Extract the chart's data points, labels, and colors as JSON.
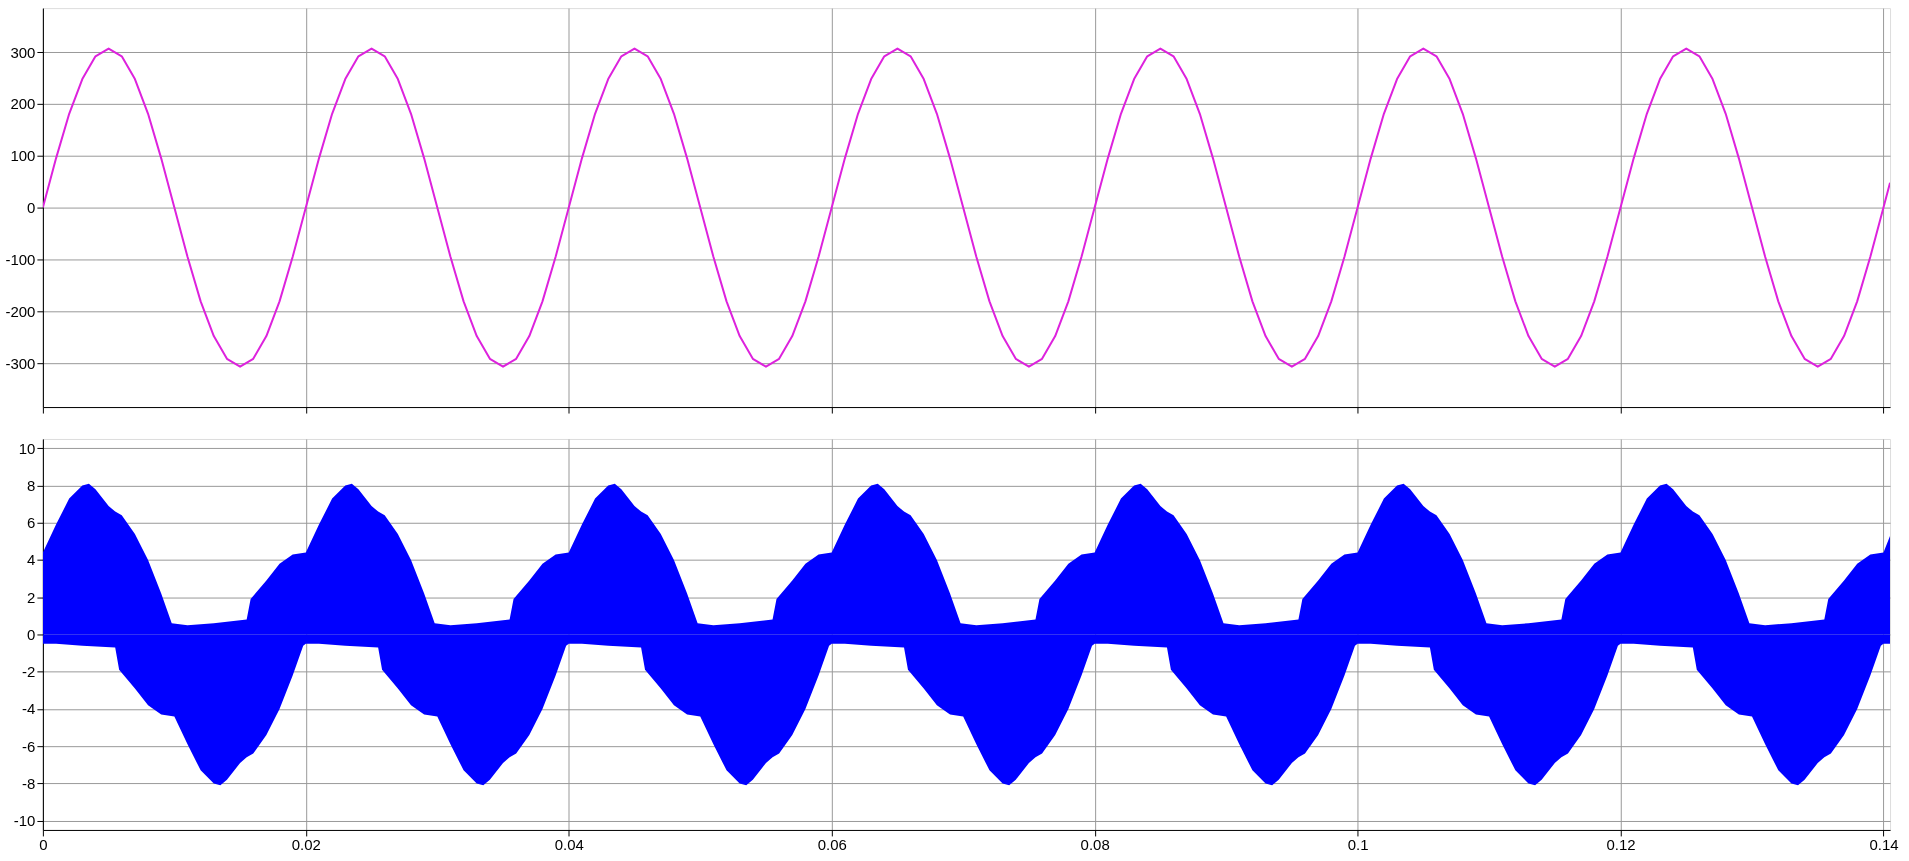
{
  "chart_data": [
    {
      "type": "line",
      "xlim": [
        0,
        0.1405
      ],
      "ylim": [
        -385,
        385
      ],
      "xticks": [
        0,
        0.02,
        0.04,
        0.06,
        0.08,
        0.1,
        0.12,
        0.14
      ],
      "yticks": [
        -300,
        -200,
        -100,
        0,
        100,
        200,
        300
      ],
      "grid": true,
      "tick_labels": "y",
      "series": [
        {
          "color": "#dd22dd",
          "x": [
            0,
            0.001,
            0.002,
            0.003,
            0.004,
            0.005,
            0.006,
            0.007,
            0.008,
            0.009,
            0.01,
            0.011,
            0.012,
            0.013,
            0.014,
            0.015,
            0.016,
            0.017,
            0.018,
            0.019,
            0.02,
            0.021,
            0.022,
            0.023,
            0.024,
            0.025,
            0.026,
            0.027,
            0.028,
            0.029,
            0.03,
            0.031,
            0.032,
            0.033,
            0.034,
            0.035,
            0.036,
            0.037,
            0.038,
            0.039,
            0.04,
            0.041,
            0.042,
            0.043,
            0.044,
            0.045,
            0.046,
            0.047,
            0.048,
            0.049,
            0.05,
            0.051,
            0.052,
            0.053,
            0.054,
            0.055,
            0.056,
            0.057,
            0.058,
            0.059,
            0.06,
            0.061,
            0.062,
            0.063,
            0.064,
            0.065,
            0.066,
            0.067,
            0.068,
            0.069,
            0.07,
            0.071,
            0.072,
            0.073,
            0.074,
            0.075,
            0.076,
            0.077,
            0.078,
            0.079,
            0.08,
            0.081,
            0.082,
            0.083,
            0.084,
            0.085,
            0.086,
            0.087,
            0.088,
            0.089,
            0.09,
            0.091,
            0.092,
            0.093,
            0.094,
            0.095,
            0.096,
            0.097,
            0.098,
            0.099,
            0.1,
            0.101,
            0.102,
            0.103,
            0.104,
            0.105,
            0.106,
            0.107,
            0.108,
            0.109,
            0.11,
            0.111,
            0.112,
            0.113,
            0.114,
            0.115,
            0.116,
            0.117,
            0.118,
            0.119,
            0.12,
            0.121,
            0.122,
            0.123,
            0.124,
            0.125,
            0.126,
            0.127,
            0.128,
            0.129,
            0.13,
            0.131,
            0.132,
            0.133,
            0.134,
            0.135,
            0.136,
            0.137,
            0.138,
            0.139,
            0.14,
            0.1405
          ],
          "values": [
            0,
            95,
            181,
            248,
            292,
            307,
            292,
            248,
            181,
            95,
            0,
            -95,
            -181,
            -248,
            -292,
            -307,
            -292,
            -248,
            -181,
            -95,
            0,
            95,
            181,
            248,
            292,
            307,
            292,
            248,
            181,
            95,
            0,
            -95,
            -181,
            -248,
            -292,
            -307,
            -292,
            -248,
            -181,
            -95,
            0,
            95,
            181,
            248,
            292,
            307,
            292,
            248,
            181,
            95,
            0,
            -95,
            -181,
            -248,
            -292,
            -307,
            -292,
            -248,
            -181,
            -95,
            0,
            95,
            181,
            248,
            292,
            307,
            292,
            248,
            181,
            95,
            0,
            -95,
            -181,
            -248,
            -292,
            -307,
            -292,
            -248,
            -181,
            -95,
            0,
            95,
            181,
            248,
            292,
            307,
            292,
            248,
            181,
            95,
            0,
            -95,
            -181,
            -248,
            -292,
            -307,
            -292,
            -248,
            -181,
            -95,
            0,
            95,
            181,
            248,
            292,
            307,
            292,
            248,
            181,
            95,
            0,
            -95,
            -181,
            -248,
            -292,
            -307,
            -292,
            -248,
            -181,
            -95,
            0,
            95,
            181,
            248,
            292,
            307,
            292,
            248,
            181,
            95,
            0,
            -95,
            -181,
            -248,
            -292,
            -307,
            -292,
            -248,
            -181,
            -95,
            0,
            48
          ]
        }
      ]
    },
    {
      "type": "area",
      "xlim": [
        0,
        0.1405
      ],
      "ylim": [
        -10.5,
        10.5
      ],
      "xticks": [
        0,
        0.02,
        0.04,
        0.06,
        0.08,
        0.1,
        0.12,
        0.14
      ],
      "yticks": [
        -10,
        -8,
        -6,
        -4,
        -2,
        0,
        2,
        4,
        6,
        8,
        10
      ],
      "grid": true,
      "series": [
        {
          "color": "#0000ff",
          "x": [
            0,
            0.001,
            0.002,
            0.003,
            0.0035,
            0.004,
            0.005,
            0.0055,
            0.006,
            0.007,
            0.008,
            0.009,
            0.0098,
            0.011,
            0.013,
            0.0155,
            0.0158,
            0.017,
            0.018,
            0.019,
            0.02,
            0.021,
            0.022,
            0.023,
            0.0235,
            0.024,
            0.025,
            0.0255,
            0.026,
            0.027,
            0.028,
            0.029,
            0.0298,
            0.031,
            0.033,
            0.0355,
            0.0358,
            0.037,
            0.038,
            0.039,
            0.04,
            0.041,
            0.042,
            0.043,
            0.0435,
            0.044,
            0.045,
            0.0455,
            0.046,
            0.047,
            0.048,
            0.049,
            0.0498,
            0.051,
            0.053,
            0.0555,
            0.0558,
            0.057,
            0.058,
            0.059,
            0.06,
            0.061,
            0.062,
            0.063,
            0.0635,
            0.064,
            0.065,
            0.0655,
            0.066,
            0.067,
            0.068,
            0.069,
            0.0698,
            0.071,
            0.073,
            0.0755,
            0.0758,
            0.077,
            0.078,
            0.079,
            0.08,
            0.081,
            0.082,
            0.083,
            0.0835,
            0.084,
            0.085,
            0.0855,
            0.086,
            0.087,
            0.088,
            0.089,
            0.0898,
            0.091,
            0.093,
            0.0955,
            0.0958,
            0.097,
            0.098,
            0.099,
            0.1,
            0.101,
            0.102,
            0.103,
            0.1035,
            0.104,
            0.105,
            0.1055,
            0.106,
            0.107,
            0.108,
            0.109,
            0.1098,
            0.111,
            0.113,
            0.1155,
            0.1158,
            0.117,
            0.118,
            0.119,
            0.12,
            0.121,
            0.122,
            0.123,
            0.1235,
            0.124,
            0.125,
            0.1255,
            0.126,
            0.127,
            0.128,
            0.129,
            0.1298,
            0.131,
            0.133,
            0.1355,
            0.1358,
            0.137,
            0.138,
            0.139,
            0.14,
            0.1405
          ],
          "values": [
            4.4,
            5.9,
            7.3,
            8,
            8.1,
            7.8,
            6.9,
            6.6,
            6.4,
            5.4,
            4,
            2.2,
            0.6,
            0.5,
            0.6,
            0.8,
            1.9,
            2.9,
            3.8,
            4.3,
            4.4,
            5.9,
            7.3,
            8,
            8.1,
            7.8,
            6.9,
            6.6,
            6.4,
            5.4,
            4,
            2.2,
            0.6,
            0.5,
            0.6,
            0.8,
            1.9,
            2.9,
            3.8,
            4.3,
            4.4,
            5.9,
            7.3,
            8,
            8.1,
            7.8,
            6.9,
            6.6,
            6.4,
            5.4,
            4,
            2.2,
            0.6,
            0.5,
            0.6,
            0.8,
            1.9,
            2.9,
            3.8,
            4.3,
            4.4,
            5.9,
            7.3,
            8,
            8.1,
            7.8,
            6.9,
            6.6,
            6.4,
            5.4,
            4,
            2.2,
            0.6,
            0.5,
            0.6,
            0.8,
            1.9,
            2.9,
            3.8,
            4.3,
            4.4,
            5.9,
            7.3,
            8,
            8.1,
            7.8,
            6.9,
            6.6,
            6.4,
            5.4,
            4,
            2.2,
            0.6,
            0.5,
            0.6,
            0.8,
            1.9,
            2.9,
            3.8,
            4.3,
            4.4,
            5.9,
            7.3,
            8,
            8.1,
            7.8,
            6.9,
            6.6,
            6.4,
            5.4,
            4,
            2.2,
            0.6,
            0.5,
            0.6,
            0.8,
            1.9,
            2.9,
            3.8,
            4.3,
            4.4,
            5.9,
            7.3,
            8,
            8.1,
            7.8,
            6.9,
            6.6,
            6.4,
            5.4,
            4,
            2.2,
            0.6,
            0.5,
            0.6,
            0.8,
            1.9,
            2.9,
            3.8,
            4.3,
            4.4,
            5.3
          ]
        },
        {
          "color": "#0000ff",
          "x": [
            0,
            0.001,
            0.003,
            0.0055,
            0.0058,
            0.007,
            0.008,
            0.009,
            0.01,
            0.011,
            0.012,
            0.013,
            0.0135,
            0.014,
            0.015,
            0.0155,
            0.016,
            0.017,
            0.018,
            0.019,
            0.0198,
            0.02,
            0.021,
            0.023,
            0.0255,
            0.0258,
            0.027,
            0.028,
            0.029,
            0.03,
            0.031,
            0.032,
            0.033,
            0.0335,
            0.034,
            0.035,
            0.0355,
            0.036,
            0.037,
            0.038,
            0.039,
            0.0398,
            0.04,
            0.041,
            0.043,
            0.0455,
            0.0458,
            0.047,
            0.048,
            0.049,
            0.05,
            0.051,
            0.052,
            0.053,
            0.0535,
            0.054,
            0.055,
            0.0555,
            0.056,
            0.057,
            0.058,
            0.059,
            0.0598,
            0.06,
            0.061,
            0.063,
            0.0655,
            0.0658,
            0.067,
            0.068,
            0.069,
            0.07,
            0.071,
            0.072,
            0.073,
            0.0735,
            0.074,
            0.075,
            0.0755,
            0.076,
            0.077,
            0.078,
            0.079,
            0.0798,
            0.08,
            0.081,
            0.083,
            0.0855,
            0.0858,
            0.087,
            0.088,
            0.089,
            0.09,
            0.091,
            0.092,
            0.093,
            0.0935,
            0.094,
            0.095,
            0.0955,
            0.096,
            0.097,
            0.098,
            0.099,
            0.0998,
            0.1,
            0.101,
            0.103,
            0.1055,
            0.1058,
            0.107,
            0.108,
            0.109,
            0.11,
            0.111,
            0.112,
            0.113,
            0.1135,
            0.114,
            0.115,
            0.1155,
            0.116,
            0.117,
            0.118,
            0.119,
            0.1198,
            0.12,
            0.121,
            0.123,
            0.1255,
            0.1258,
            0.127,
            0.128,
            0.129,
            0.13,
            0.131,
            0.132,
            0.133,
            0.1335,
            0.134,
            0.135,
            0.1355,
            0.136,
            0.137,
            0.138,
            0.139,
            0.1398,
            0.14,
            0.1405
          ],
          "values": [
            -0.5,
            -0.5,
            -0.6,
            -0.7,
            -1.9,
            -2.9,
            -3.8,
            -4.3,
            -4.4,
            -5.9,
            -7.3,
            -8,
            -8.1,
            -7.8,
            -6.9,
            -6.6,
            -6.4,
            -5.4,
            -4,
            -2.2,
            -0.6,
            -0.5,
            -0.5,
            -0.6,
            -0.7,
            -1.9,
            -2.9,
            -3.8,
            -4.3,
            -4.4,
            -5.9,
            -7.3,
            -8,
            -8.1,
            -7.8,
            -6.9,
            -6.6,
            -6.4,
            -5.4,
            -4,
            -2.2,
            -0.6,
            -0.5,
            -0.5,
            -0.6,
            -0.7,
            -1.9,
            -2.9,
            -3.8,
            -4.3,
            -4.4,
            -5.9,
            -7.3,
            -8,
            -8.1,
            -7.8,
            -6.9,
            -6.6,
            -6.4,
            -5.4,
            -4,
            -2.2,
            -0.6,
            -0.5,
            -0.5,
            -0.6,
            -0.7,
            -1.9,
            -2.9,
            -3.8,
            -4.3,
            -4.4,
            -5.9,
            -7.3,
            -8,
            -8.1,
            -7.8,
            -6.9,
            -6.6,
            -6.4,
            -5.4,
            -4,
            -2.2,
            -0.6,
            -0.5,
            -0.5,
            -0.6,
            -0.7,
            -1.9,
            -2.9,
            -3.8,
            -4.3,
            -4.4,
            -5.9,
            -7.3,
            -8,
            -8.1,
            -7.8,
            -6.9,
            -6.6,
            -6.4,
            -5.4,
            -4,
            -2.2,
            -0.6,
            -0.5,
            -0.5,
            -0.6,
            -0.7,
            -1.9,
            -2.9,
            -3.8,
            -4.3,
            -4.4,
            -5.9,
            -7.3,
            -8,
            -8.1,
            -7.8,
            -6.9,
            -6.6,
            -6.4,
            -5.4,
            -4,
            -2.2,
            -0.6,
            -0.5,
            -0.5,
            -0.6,
            -0.7,
            -1.9,
            -2.9,
            -3.8,
            -4.3,
            -4.4,
            -5.9,
            -7.3,
            -8,
            -8.1,
            -7.8,
            -6.9,
            -6.6,
            -6.4,
            -5.4,
            -4,
            -2.2,
            -0.6,
            -0.5,
            -0.5
          ]
        }
      ]
    }
  ]
}
